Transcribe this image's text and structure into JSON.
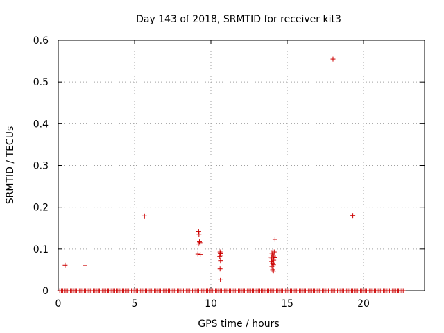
{
  "chart_data": {
    "type": "scatter",
    "title": "Day 143 of 2018, SRMTID for receiver kit3",
    "xlabel": "GPS time / hours",
    "ylabel": "SRMTID / TECUs",
    "xlim": [
      0,
      24
    ],
    "ylim": [
      0,
      0.6
    ],
    "xticks": [
      0,
      5,
      10,
      15,
      20
    ],
    "yticks": [
      0,
      0.1,
      0.2,
      0.3,
      0.4,
      0.5,
      0.6
    ],
    "xtick_labels": [
      "0",
      "5",
      "10",
      "15",
      "20"
    ],
    "ytick_labels": [
      "0",
      "0.1",
      "0.2",
      "0.3",
      "0.4",
      "0.5",
      "0.6"
    ],
    "grid": true,
    "marker": "+",
    "color": "#cc0000",
    "series": [
      {
        "name": "kit3",
        "baseline": {
          "y": 0,
          "x_start": 0.1,
          "x_end": 22.6,
          "step": 0.1
        },
        "points": [
          {
            "x": 0.45,
            "y": 0.061
          },
          {
            "x": 1.75,
            "y": 0.06
          },
          {
            "x": 5.65,
            "y": 0.179
          },
          {
            "x": 9.2,
            "y": 0.142
          },
          {
            "x": 9.22,
            "y": 0.135
          },
          {
            "x": 9.25,
            "y": 0.117
          },
          {
            "x": 9.18,
            "y": 0.112
          },
          {
            "x": 9.28,
            "y": 0.115
          },
          {
            "x": 9.15,
            "y": 0.088
          },
          {
            "x": 9.3,
            "y": 0.087
          },
          {
            "x": 10.6,
            "y": 0.093
          },
          {
            "x": 10.62,
            "y": 0.089
          },
          {
            "x": 10.65,
            "y": 0.085
          },
          {
            "x": 10.58,
            "y": 0.082
          },
          {
            "x": 10.63,
            "y": 0.072
          },
          {
            "x": 10.6,
            "y": 0.052
          },
          {
            "x": 10.62,
            "y": 0.026
          },
          {
            "x": 14.2,
            "y": 0.123
          },
          {
            "x": 14.15,
            "y": 0.093
          },
          {
            "x": 14.0,
            "y": 0.09
          },
          {
            "x": 14.05,
            "y": 0.086
          },
          {
            "x": 14.1,
            "y": 0.083
          },
          {
            "x": 13.95,
            "y": 0.08
          },
          {
            "x": 14.2,
            "y": 0.079
          },
          {
            "x": 14.0,
            "y": 0.076
          },
          {
            "x": 14.12,
            "y": 0.073
          },
          {
            "x": 13.98,
            "y": 0.07
          },
          {
            "x": 14.05,
            "y": 0.066
          },
          {
            "x": 14.1,
            "y": 0.062
          },
          {
            "x": 14.0,
            "y": 0.058
          },
          {
            "x": 14.08,
            "y": 0.054
          },
          {
            "x": 14.05,
            "y": 0.05
          },
          {
            "x": 14.1,
            "y": 0.047
          },
          {
            "x": 18.0,
            "y": 0.555
          },
          {
            "x": 19.3,
            "y": 0.18
          }
        ]
      }
    ]
  }
}
